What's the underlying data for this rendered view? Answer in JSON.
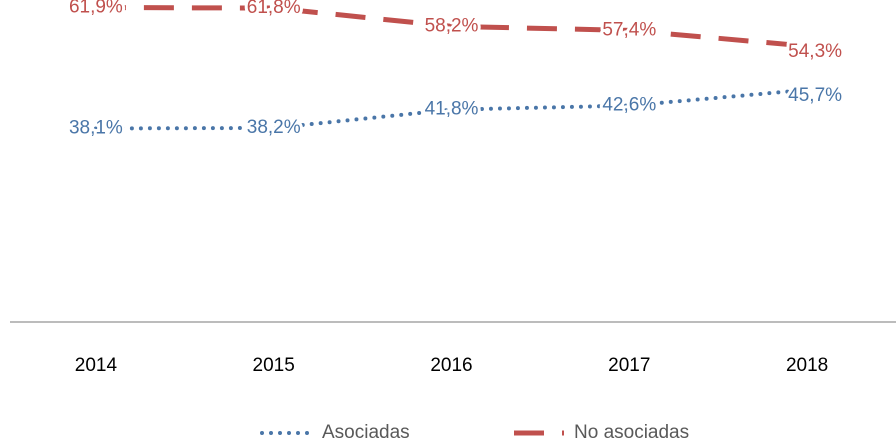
{
  "chart_data": {
    "type": "line",
    "categories": [
      "2014",
      "2015",
      "2016",
      "2017",
      "2018"
    ],
    "series": [
      {
        "name": "Asociadas",
        "color": "#4a76a8",
        "dash": "dotted",
        "values": [
          38.1,
          38.2,
          41.8,
          42.6,
          45.7
        ],
        "value_labels": [
          "38,1%",
          "38,2%",
          "41,8%",
          "42,6%",
          "45,7%"
        ]
      },
      {
        "name": "No asociadas",
        "color": "#c0504d",
        "dash": "dashed",
        "values": [
          61.9,
          61.8,
          58.2,
          57.4,
          54.3
        ],
        "value_labels": [
          "61,9%",
          "61,8%",
          "58,2%",
          "57,4%",
          "54,3%"
        ]
      }
    ],
    "ylim": [
      0,
      70
    ],
    "legend": "bottom"
  }
}
